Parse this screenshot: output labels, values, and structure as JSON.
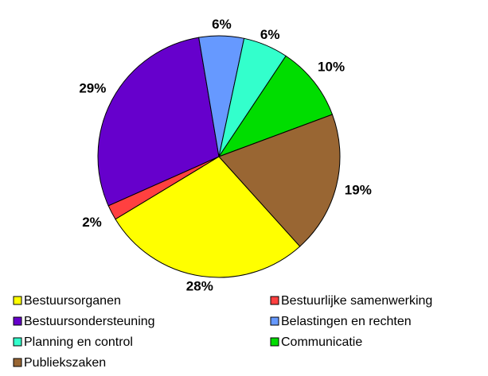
{
  "chart_data": {
    "type": "pie",
    "categories": [
      "Bestuursorganen",
      "Bestuurlijke samenwerking",
      "Bestuursondersteuning",
      "Belastingen en rechten",
      "Planning en control",
      "Communicatie",
      "Publiekszaken"
    ],
    "values": [
      28,
      2,
      29,
      6,
      6,
      10,
      19
    ],
    "value_labels": [
      "28%",
      "2%",
      "29%",
      "6%",
      "6%",
      "10%",
      "19%"
    ],
    "colors": [
      "#ffff00",
      "#ff4040",
      "#6600cc",
      "#6699ff",
      "#33ffcc",
      "#00dd00",
      "#996633"
    ],
    "legend": "bottom"
  }
}
